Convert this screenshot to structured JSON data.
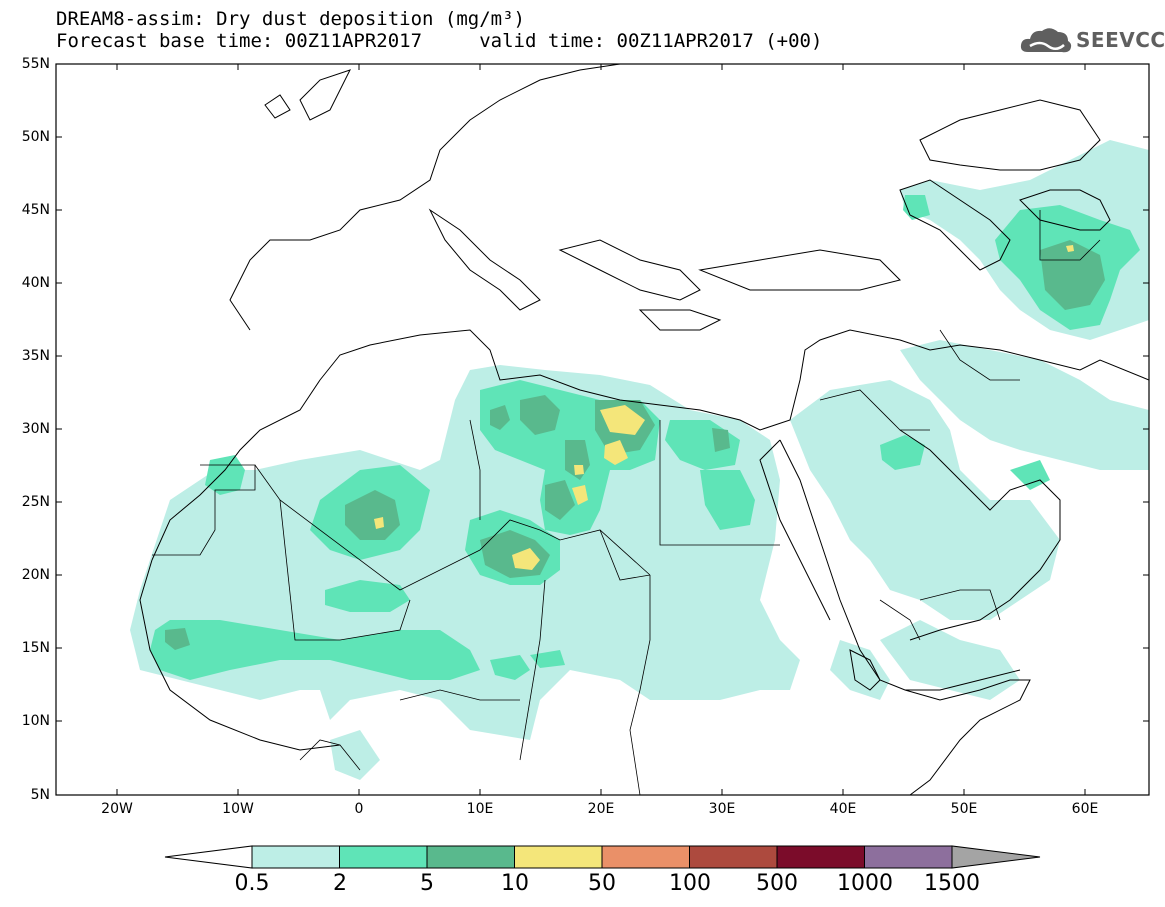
{
  "title": {
    "line1": "DREAM8-assim: Dry dust deposition (mg/m³)",
    "line2": "Forecast base time: 00Z11APR2017     valid time: 00Z11APR2017 (+00)"
  },
  "logo": {
    "text": "SEEVCCC",
    "icon": "cloud-icon"
  },
  "map": {
    "projection": "lat-lon",
    "lon_range": [
      -25,
      65
    ],
    "lat_range": [
      5,
      55
    ],
    "lon_ticks": [
      "20W",
      "10W",
      "0",
      "10E",
      "20E",
      "30E",
      "40E",
      "50E",
      "60E"
    ],
    "lat_ticks": [
      "55N",
      "50N",
      "45N",
      "40N",
      "35N",
      "30N",
      "25N",
      "20N",
      "15N",
      "10N",
      "5N"
    ]
  },
  "legend": {
    "levels": [
      "0.5",
      "2",
      "5",
      "10",
      "50",
      "100",
      "500",
      "1000",
      "1500"
    ],
    "colors": [
      "#ffffff",
      "#bdeee6",
      "#5fe4b7",
      "#59b98d",
      "#f4e67a",
      "#ea9068",
      "#ad4a3e",
      "#7b0c2a",
      "#8d6f9d",
      "#a4a4a4"
    ]
  }
}
